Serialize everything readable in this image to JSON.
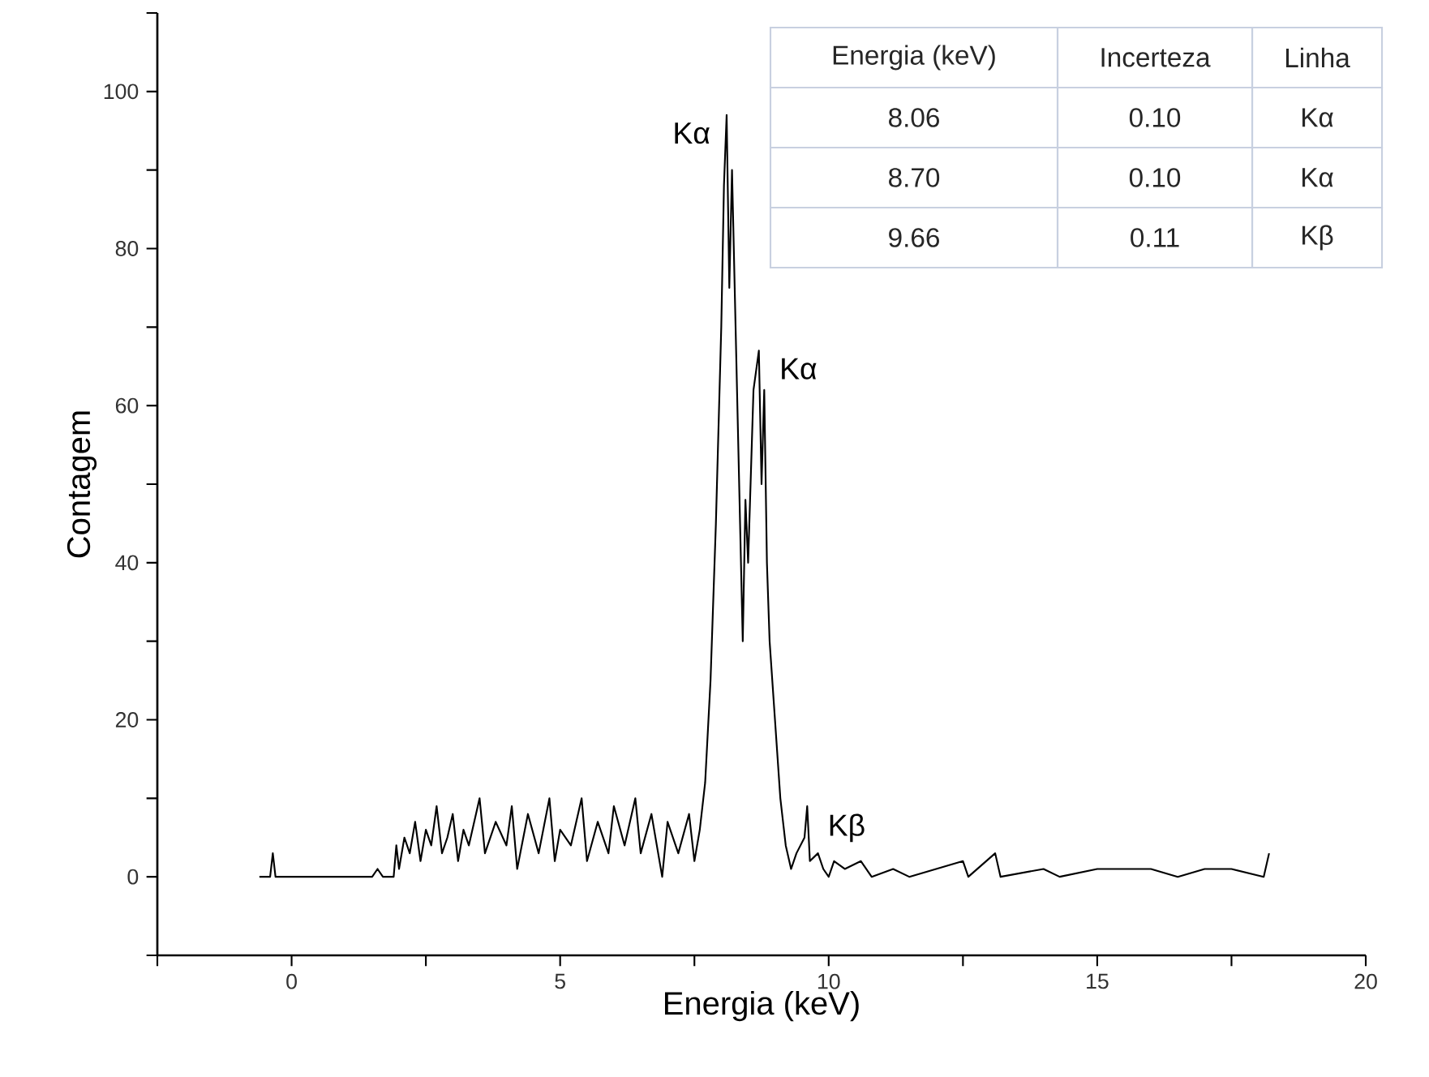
{
  "chart_data": {
    "type": "line",
    "xlabel": "Energia (keV)",
    "ylabel": "Contagem",
    "xlim": [
      -2.5,
      20
    ],
    "ylim": [
      -10,
      110
    ],
    "xticks": [
      {
        "value": -2.5,
        "label": null
      },
      0,
      {
        "value": 2.5,
        "label": null
      },
      5,
      {
        "value": 7.5,
        "label": null
      },
      10,
      {
        "value": 12.5,
        "label": null
      },
      15,
      {
        "value": 17.5,
        "label": null
      },
      20
    ],
    "yticks": [
      {
        "value": -10,
        "label": null
      },
      0,
      {
        "value": 10,
        "label": null
      },
      20,
      {
        "value": 30,
        "label": null
      },
      40,
      {
        "value": 50,
        "label": null
      },
      60,
      {
        "value": 70,
        "label": null
      },
      80,
      {
        "value": 90,
        "label": null
      },
      100,
      {
        "value": 110,
        "label": null
      }
    ],
    "grid": false,
    "marker": "none",
    "line_style": "solid",
    "series": [
      {
        "color": "#000000",
        "x": [
          -0.6,
          -0.4,
          -0.35,
          -0.3,
          1.5,
          1.6,
          1.7,
          1.9,
          1.95,
          2.0,
          2.1,
          2.2,
          2.3,
          2.4,
          2.5,
          2.6,
          2.7,
          2.8,
          2.9,
          3.0,
          3.1,
          3.2,
          3.3,
          3.5,
          3.6,
          3.8,
          4.0,
          4.1,
          4.2,
          4.4,
          4.6,
          4.8,
          4.9,
          5.0,
          5.2,
          5.4,
          5.5,
          5.7,
          5.9,
          6.0,
          6.2,
          6.4,
          6.5,
          6.7,
          6.9,
          7.0,
          7.2,
          7.4,
          7.5,
          7.6,
          7.7,
          7.8,
          7.9,
          8.0,
          8.05,
          8.1,
          8.15,
          8.2,
          8.3,
          8.4,
          8.45,
          8.5,
          8.6,
          8.7,
          8.75,
          8.8,
          8.85,
          8.9,
          9.0,
          9.1,
          9.2,
          9.3,
          9.4,
          9.55,
          9.6,
          9.65,
          9.8,
          9.9,
          10.0,
          10.1,
          10.3,
          10.6,
          10.8,
          11.2,
          11.5,
          12.0,
          12.5,
          12.6,
          13.1,
          13.2,
          14.0,
          14.3,
          15.0,
          16.0,
          16.5,
          17.0,
          17.5,
          18.1,
          18.2
        ],
        "values": [
          0,
          0,
          3,
          0,
          0,
          1,
          0,
          0,
          4,
          1,
          5,
          3,
          7,
          2,
          6,
          4,
          9,
          3,
          5,
          8,
          2,
          6,
          4,
          10,
          3,
          7,
          4,
          9,
          1,
          8,
          3,
          10,
          2,
          6,
          4,
          10,
          2,
          7,
          3,
          9,
          4,
          10,
          3,
          8,
          0,
          7,
          3,
          8,
          2,
          6,
          12,
          25,
          45,
          70,
          88,
          97,
          75,
          90,
          60,
          30,
          48,
          40,
          62,
          67,
          50,
          62,
          40,
          30,
          20,
          10,
          4,
          1,
          3,
          5,
          9,
          2,
          3,
          1,
          0,
          2,
          1,
          2,
          0,
          1,
          0,
          1,
          2,
          0,
          3,
          0,
          1,
          0,
          1,
          1,
          0,
          1,
          1,
          0,
          3
        ]
      }
    ],
    "annotations": [
      {
        "text": "Kα",
        "x": 8.1,
        "y": 97
      },
      {
        "text": "Kα",
        "x": 8.7,
        "y": 67
      },
      {
        "text": "Kβ",
        "x": 9.6,
        "y": 9
      },
      "Energia (keV)",
      "Incerteza",
      "Linha",
      "8.06",
      "0.10",
      "Kα",
      "8.70",
      "0.10",
      "Kα",
      "9.66",
      "0.11",
      "Kβ"
    ]
  }
}
